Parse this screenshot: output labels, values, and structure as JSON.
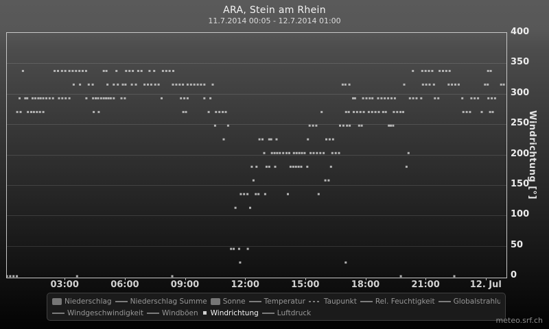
{
  "header": {
    "title": "ARA, Stein am Rhein",
    "subtitle": "11.7.2014 00:05 - 12.7.2014 01:00"
  },
  "watermark": "meteo.srf.ch",
  "colors": {
    "header_bg": "#585858",
    "plot_border": "#c8c8c8",
    "grid": "rgba(255,255,255,0.13)",
    "point": "#b6b6b6",
    "axis_label": "#ececec",
    "legend_bg": "#1d1d1d",
    "legend_text": "#979797",
    "legend_active_text": "#f4f4f4",
    "swatch": "#7d7d7d"
  },
  "legend": {
    "rows": [
      [
        {
          "swatch": "box",
          "label": "Niederschlag",
          "active": false
        },
        {
          "swatch": "line",
          "label": "Niederschlag Summe",
          "active": false
        },
        {
          "swatch": "box",
          "label": "Sonne",
          "active": false
        },
        {
          "swatch": "line",
          "label": "Temperatur",
          "active": false
        },
        {
          "swatch": "dash",
          "label": "Taupunkt",
          "active": false
        },
        {
          "swatch": "line",
          "label": "Rel. Feuchtigkeit",
          "active": false
        },
        {
          "swatch": "line",
          "label": "Globalstrahlung",
          "active": false
        }
      ],
      [
        {
          "swatch": "line",
          "label": "Windgeschwindigkeit",
          "active": false
        },
        {
          "swatch": "line",
          "label": "Windböen",
          "active": false
        },
        {
          "swatch": "square",
          "label": "Windrichtung",
          "active": true
        },
        {
          "swatch": "line",
          "label": "Luftdruck",
          "active": false
        }
      ]
    ]
  },
  "chart_data": {
    "type": "scatter",
    "title": "ARA, Stein am Rhein",
    "subtitle": "11.7.2014 00:05 - 12.7.2014 01:00",
    "xlabel": "",
    "ylabel": "Windrichtung [°]",
    "ylim": [
      0,
      400
    ],
    "yticks": [
      0,
      50,
      100,
      150,
      200,
      250,
      300,
      350,
      400
    ],
    "grid": "horizontal",
    "legend_position": "bottom",
    "marker": "square",
    "marker_size_px": 3,
    "xlim_minutes": [
      5,
      1500
    ],
    "xticks": [
      {
        "label": "03:00",
        "minutes": 180
      },
      {
        "label": "06:00",
        "minutes": 360
      },
      {
        "label": "09:00",
        "minutes": 540
      },
      {
        "label": "12:00",
        "minutes": 720
      },
      {
        "label": "15:00",
        "minutes": 900
      },
      {
        "label": "18:00",
        "minutes": 1080
      },
      {
        "label": "21:00",
        "minutes": 1260
      },
      {
        "label": "12. Jul",
        "minutes": 1440
      }
    ],
    "series": [
      {
        "name": "Windrichtung",
        "unit": "°",
        "points": [
          [
            5,
            0
          ],
          [
            15,
            0
          ],
          [
            25,
            0
          ],
          [
            35,
            0
          ],
          [
            215,
            0
          ],
          [
            500,
            0
          ],
          [
            1184,
            0
          ],
          [
            1344,
            0
          ],
          [
            703,
            22.5
          ],
          [
            1019,
            22.5
          ],
          [
            676,
            45
          ],
          [
            684,
            45
          ],
          [
            700,
            45
          ],
          [
            726,
            45
          ],
          [
            689,
            112.5
          ],
          [
            733,
            112.5
          ],
          [
            705,
            135
          ],
          [
            715,
            135
          ],
          [
            725,
            135
          ],
          [
            750,
            135
          ],
          [
            758,
            135
          ],
          [
            778,
            135
          ],
          [
            846,
            135
          ],
          [
            938,
            135
          ],
          [
            743,
            157.5
          ],
          [
            958,
            157.5
          ],
          [
            968,
            157.5
          ],
          [
            738,
            180
          ],
          [
            752,
            180
          ],
          [
            782,
            180
          ],
          [
            790,
            180
          ],
          [
            808,
            180
          ],
          [
            854,
            180
          ],
          [
            862,
            180
          ],
          [
            870,
            180
          ],
          [
            878,
            180
          ],
          [
            886,
            180
          ],
          [
            904,
            180
          ],
          [
            975,
            180
          ],
          [
            1201,
            180
          ],
          [
            775,
            202.5
          ],
          [
            798,
            202.5
          ],
          [
            806,
            202.5
          ],
          [
            814,
            202.5
          ],
          [
            822,
            202.5
          ],
          [
            832,
            202.5
          ],
          [
            842,
            202.5
          ],
          [
            850,
            202.5
          ],
          [
            864,
            202.5
          ],
          [
            872,
            202.5
          ],
          [
            880,
            202.5
          ],
          [
            888,
            202.5
          ],
          [
            896,
            202.5
          ],
          [
            914,
            202.5
          ],
          [
            923,
            202.5
          ],
          [
            933,
            202.5
          ],
          [
            943,
            202.5
          ],
          [
            953,
            202.5
          ],
          [
            979,
            202.5
          ],
          [
            989,
            202.5
          ],
          [
            999,
            202.5
          ],
          [
            1207,
            202.5
          ],
          [
            654,
            225
          ],
          [
            761,
            225
          ],
          [
            770,
            225
          ],
          [
            790,
            225
          ],
          [
            796,
            225
          ],
          [
            812,
            225
          ],
          [
            906,
            225
          ],
          [
            961,
            225
          ],
          [
            971,
            225
          ],
          [
            981,
            225
          ],
          [
            628,
            247.5
          ],
          [
            667,
            247.5
          ],
          [
            911,
            247.5
          ],
          [
            921,
            247.5
          ],
          [
            931,
            247.5
          ],
          [
            1002,
            247.5
          ],
          [
            1012,
            247.5
          ],
          [
            1023,
            247.5
          ],
          [
            1031,
            247.5
          ],
          [
            1059,
            247.5
          ],
          [
            1067,
            247.5
          ],
          [
            1148,
            247.5
          ],
          [
            1154,
            247.5
          ],
          [
            1161,
            247.5
          ],
          [
            36,
            270
          ],
          [
            46,
            270
          ],
          [
            68,
            270
          ],
          [
            78,
            270
          ],
          [
            86,
            270
          ],
          [
            95,
            270
          ],
          [
            104,
            270
          ],
          [
            114,
            270
          ],
          [
            265,
            270
          ],
          [
            280,
            270
          ],
          [
            533,
            270
          ],
          [
            541,
            270
          ],
          [
            609,
            270
          ],
          [
            631,
            270
          ],
          [
            641,
            270
          ],
          [
            651,
            270
          ],
          [
            660,
            270
          ],
          [
            947,
            270
          ],
          [
            1020,
            270
          ],
          [
            1028,
            270
          ],
          [
            1043,
            270
          ],
          [
            1053,
            270
          ],
          [
            1063,
            270
          ],
          [
            1073,
            270
          ],
          [
            1088,
            270
          ],
          [
            1098,
            270
          ],
          [
            1108,
            270
          ],
          [
            1118,
            270
          ],
          [
            1131,
            270
          ],
          [
            1139,
            270
          ],
          [
            1163,
            270
          ],
          [
            1173,
            270
          ],
          [
            1183,
            270
          ],
          [
            1191,
            270
          ],
          [
            1371,
            270
          ],
          [
            1381,
            270
          ],
          [
            1391,
            270
          ],
          [
            1426,
            270
          ],
          [
            1451,
            270
          ],
          [
            1459,
            270
          ],
          [
            43,
            292.5
          ],
          [
            60,
            292.5
          ],
          [
            66,
            292.5
          ],
          [
            82,
            292.5
          ],
          [
            90,
            292.5
          ],
          [
            99,
            292.5
          ],
          [
            106,
            292.5
          ],
          [
            114,
            292.5
          ],
          [
            123,
            292.5
          ],
          [
            133,
            292.5
          ],
          [
            143,
            292.5
          ],
          [
            161,
            292.5
          ],
          [
            171,
            292.5
          ],
          [
            181,
            292.5
          ],
          [
            192,
            292.5
          ],
          [
            243,
            292.5
          ],
          [
            263,
            292.5
          ],
          [
            271,
            292.5
          ],
          [
            278,
            292.5
          ],
          [
            287,
            292.5
          ],
          [
            295,
            292.5
          ],
          [
            302,
            292.5
          ],
          [
            309,
            292.5
          ],
          [
            316,
            292.5
          ],
          [
            325,
            292.5
          ],
          [
            348,
            292.5
          ],
          [
            358,
            292.5
          ],
          [
            468,
            292.5
          ],
          [
            526,
            292.5
          ],
          [
            536,
            292.5
          ],
          [
            546,
            292.5
          ],
          [
            596,
            292.5
          ],
          [
            614,
            292.5
          ],
          [
            1041,
            292.5
          ],
          [
            1047,
            292.5
          ],
          [
            1071,
            292.5
          ],
          [
            1081,
            292.5
          ],
          [
            1091,
            292.5
          ],
          [
            1099,
            292.5
          ],
          [
            1116,
            292.5
          ],
          [
            1126,
            292.5
          ],
          [
            1136,
            292.5
          ],
          [
            1146,
            292.5
          ],
          [
            1156,
            292.5
          ],
          [
            1166,
            292.5
          ],
          [
            1211,
            292.5
          ],
          [
            1221,
            292.5
          ],
          [
            1231,
            292.5
          ],
          [
            1245,
            292.5
          ],
          [
            1286,
            292.5
          ],
          [
            1296,
            292.5
          ],
          [
            1368,
            292.5
          ],
          [
            1395,
            292.5
          ],
          [
            1405,
            292.5
          ],
          [
            1415,
            292.5
          ],
          [
            1446,
            292.5
          ],
          [
            1456,
            292.5
          ],
          [
            1466,
            292.5
          ],
          [
            205,
            315
          ],
          [
            224,
            315
          ],
          [
            250,
            315
          ],
          [
            262,
            315
          ],
          [
            306,
            315
          ],
          [
            325,
            315
          ],
          [
            337,
            315
          ],
          [
            352,
            315
          ],
          [
            360,
            315
          ],
          [
            379,
            315
          ],
          [
            391,
            315
          ],
          [
            417,
            315
          ],
          [
            427,
            315
          ],
          [
            437,
            315
          ],
          [
            449,
            315
          ],
          [
            459,
            315
          ],
          [
            502,
            315
          ],
          [
            512,
            315
          ],
          [
            522,
            315
          ],
          [
            532,
            315
          ],
          [
            546,
            315
          ],
          [
            556,
            315
          ],
          [
            566,
            315
          ],
          [
            576,
            315
          ],
          [
            586,
            315
          ],
          [
            596,
            315
          ],
          [
            621,
            315
          ],
          [
            1010,
            315
          ],
          [
            1018,
            315
          ],
          [
            1030,
            315
          ],
          [
            1194,
            315
          ],
          [
            1250,
            315
          ],
          [
            1260,
            315
          ],
          [
            1270,
            315
          ],
          [
            1283,
            315
          ],
          [
            1327,
            315
          ],
          [
            1337,
            315
          ],
          [
            1347,
            315
          ],
          [
            1357,
            315
          ],
          [
            1436,
            315
          ],
          [
            1444,
            315
          ],
          [
            1484,
            315
          ],
          [
            1492,
            315
          ],
          [
            53,
            337.5
          ],
          [
            148,
            337.5
          ],
          [
            158,
            337.5
          ],
          [
            170,
            337.5
          ],
          [
            180,
            337.5
          ],
          [
            192,
            337.5
          ],
          [
            202,
            337.5
          ],
          [
            212,
            337.5
          ],
          [
            222,
            337.5
          ],
          [
            232,
            337.5
          ],
          [
            242,
            337.5
          ],
          [
            295,
            337.5
          ],
          [
            303,
            337.5
          ],
          [
            333,
            337.5
          ],
          [
            362,
            337.5
          ],
          [
            372,
            337.5
          ],
          [
            382,
            337.5
          ],
          [
            398,
            337.5
          ],
          [
            408,
            337.5
          ],
          [
            432,
            337.5
          ],
          [
            446,
            337.5
          ],
          [
            472,
            337.5
          ],
          [
            482,
            337.5
          ],
          [
            492,
            337.5
          ],
          [
            503,
            337.5
          ],
          [
            1220,
            337.5
          ],
          [
            1248,
            337.5
          ],
          [
            1258,
            337.5
          ],
          [
            1268,
            337.5
          ],
          [
            1278,
            337.5
          ],
          [
            1300,
            337.5
          ],
          [
            1310,
            337.5
          ],
          [
            1320,
            337.5
          ],
          [
            1330,
            337.5
          ],
          [
            1445,
            337.5
          ],
          [
            1453,
            337.5
          ]
        ]
      }
    ]
  }
}
